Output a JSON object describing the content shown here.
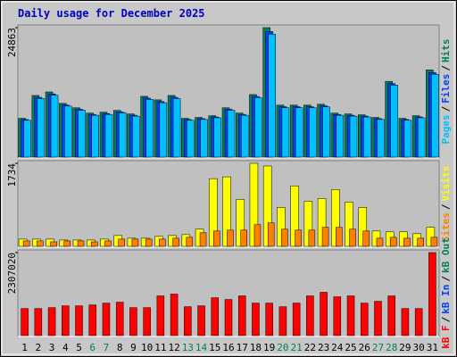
{
  "title": "Daily usage for December 2025",
  "legend_separator": "/",
  "chart_data": [
    {
      "type": "bar",
      "ylim": [
        0,
        24863
      ],
      "yticks": [
        24863
      ],
      "series": [
        {
          "name": "Hits",
          "color": "#008060",
          "values": [
            7441,
            11840,
            12516,
            10317,
            9472,
            8457,
            8626,
            8964,
            8288,
            11671,
            10994,
            11840,
            7442,
            7611,
            7950,
            9472,
            8457,
            12009,
            24863,
            9979,
            9979,
            9979,
            10148,
            8457,
            8288,
            8119,
            7611,
            14546,
            7442,
            7950,
            16745
          ]
        },
        {
          "name": "Files",
          "color": "#0040ff",
          "values": [
            7218,
            11485,
            12141,
            10007,
            9188,
            8203,
            8367,
            8695,
            8039,
            11321,
            10664,
            11485,
            7219,
            7383,
            7712,
            9188,
            8203,
            11649,
            24117,
            9680,
            9680,
            9680,
            9844,
            8203,
            8039,
            7875,
            7383,
            14110,
            7219,
            7712,
            16243
          ]
        },
        {
          "name": "Pages",
          "color": "#00c0ff",
          "values": [
            7069,
            11248,
            11890,
            9801,
            8998,
            8034,
            8195,
            8516,
            7874,
            11087,
            10444,
            11248,
            7070,
            7230,
            7553,
            8998,
            8034,
            11409,
            23620,
            9480,
            9480,
            9480,
            9641,
            8034,
            7874,
            7713,
            7230,
            13819,
            7070,
            7553,
            15908
          ]
        }
      ]
    },
    {
      "type": "bar",
      "ylim": [
        0,
        1734
      ],
      "yticks": [
        1734
      ],
      "series": [
        {
          "name": "Visits",
          "color": "#ffff00",
          "values": [
            151,
            151,
            151,
            132,
            132,
            132,
            151,
            226,
            170,
            170,
            208,
            226,
            245,
            358,
            1414,
            1452,
            980,
            1734,
            1678,
            811,
            1263,
            943,
            999,
            1188,
            924,
            811,
            320,
            302,
            302,
            264,
            396
          ]
        },
        {
          "name": "Sites",
          "color": "#ff8000",
          "values": [
            113,
            113,
            94,
            113,
            113,
            94,
            113,
            151,
            151,
            151,
            151,
            170,
            189,
            283,
            320,
            339,
            339,
            452,
            490,
            358,
            339,
            339,
            396,
            396,
            358,
            320,
            170,
            189,
            170,
            170,
            189
          ]
        }
      ]
    },
    {
      "type": "bar",
      "ylim": [
        0,
        2307020
      ],
      "yticks": [
        2307020
      ],
      "categories": [
        "1",
        "2",
        "3",
        "4",
        "5",
        "6",
        "7",
        "8",
        "9",
        "10",
        "11",
        "12",
        "13",
        "14",
        "15",
        "16",
        "17",
        "18",
        "19",
        "20",
        "21",
        "22",
        "23",
        "24",
        "25",
        "26",
        "27",
        "28",
        "29",
        "30",
        "31"
      ],
      "category_colors": [
        "#000000",
        "#000000",
        "#000000",
        "#000000",
        "#000000",
        "#008060",
        "#008060",
        "#000000",
        "#000000",
        "#000000",
        "#000000",
        "#000000",
        "#008060",
        "#008060",
        "#000000",
        "#000000",
        "#000000",
        "#000000",
        "#000000",
        "#008060",
        "#008060",
        "#000000",
        "#000000",
        "#000000",
        "#000000",
        "#000000",
        "#008060",
        "#008060",
        "#000000",
        "#000000",
        "#000000"
      ],
      "series": [
        {
          "name": "kB Out",
          "color": "#008060",
          "values": [
            null,
            null,
            null,
            null,
            null,
            null,
            null,
            null,
            null,
            null,
            null,
            null,
            null,
            null,
            null,
            null,
            null,
            null,
            null,
            null,
            null,
            null,
            null,
            null,
            null,
            null,
            null,
            null,
            null,
            null,
            null
          ]
        },
        {
          "name": "kB In",
          "color": "#0040ff",
          "values": [
            null,
            null,
            null,
            null,
            null,
            null,
            null,
            null,
            null,
            null,
            null,
            null,
            null,
            null,
            null,
            null,
            null,
            null,
            null,
            null,
            null,
            null,
            null,
            null,
            null,
            null,
            null,
            null,
            null,
            null,
            null
          ]
        },
        {
          "name": "kB F",
          "color": "#ff0000",
          "values": [
            752310,
            752310,
            777360,
            827510,
            827510,
            852590,
            902740,
            927810,
            777360,
            777360,
            1103340,
            1153500,
            802430,
            827510,
            1053190,
            1003040,
            1103340,
            902740,
            902740,
            802430,
            902740,
            1103340,
            1203650,
            1078260,
            1103340,
            902740,
            952890,
            1103340,
            752310,
            752310,
            2307020
          ]
        }
      ]
    }
  ]
}
